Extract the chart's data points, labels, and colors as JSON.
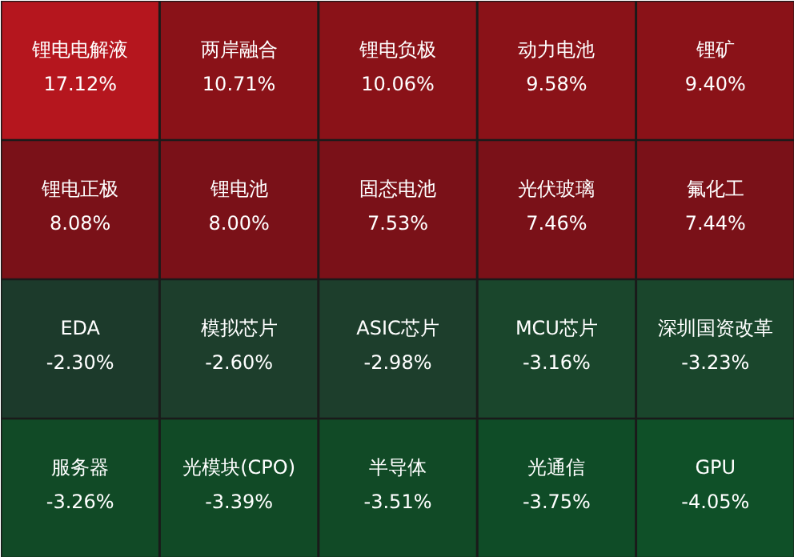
{
  "chart_data": {
    "type": "other",
    "categories": [
      "锂电电解液",
      "两岸融合",
      "锂电负极",
      "动力电池",
      "锂矿",
      "锂电正极",
      "锂电池",
      "固态电池",
      "光伏玻璃",
      "氟化工",
      "EDA",
      "模拟芯片",
      "ASIC芯片",
      "MCU芯片",
      "深圳国资改革",
      "服务器",
      "光模块(CPO)",
      "半导体",
      "光通信",
      "GPU"
    ],
    "values": [
      17.12,
      10.71,
      10.06,
      9.58,
      9.4,
      8.08,
      8.0,
      7.53,
      7.46,
      7.44,
      -2.3,
      -2.6,
      -2.98,
      -3.16,
      -3.23,
      -3.26,
      -3.39,
      -3.51,
      -3.75,
      -4.05
    ],
    "colors": [
      "#b5161e",
      "#8a1218",
      "#8a1218",
      "#8a1218",
      "#8a1218",
      "#7a1118",
      "#7a1118",
      "#7a1118",
      "#7a1118",
      "#7a1118",
      "#1c3a2b",
      "#1d3e2c",
      "#1d3e2c",
      "#1a462c",
      "#1a462c",
      "#114a26",
      "#114a26",
      "#114a26",
      "#0f4c27",
      "#0f5028"
    ],
    "value_labels": [
      "17.12%",
      "10.71%",
      "10.06%",
      "9.58%",
      "9.40%",
      "8.08%",
      "8.00%",
      "7.53%",
      "7.46%",
      "7.44%",
      "-2.30%",
      "-2.60%",
      "-2.98%",
      "-3.16%",
      "-3.23%",
      "-3.26%",
      "-3.39%",
      "-3.51%",
      "-3.75%",
      "-4.05%"
    ]
  }
}
